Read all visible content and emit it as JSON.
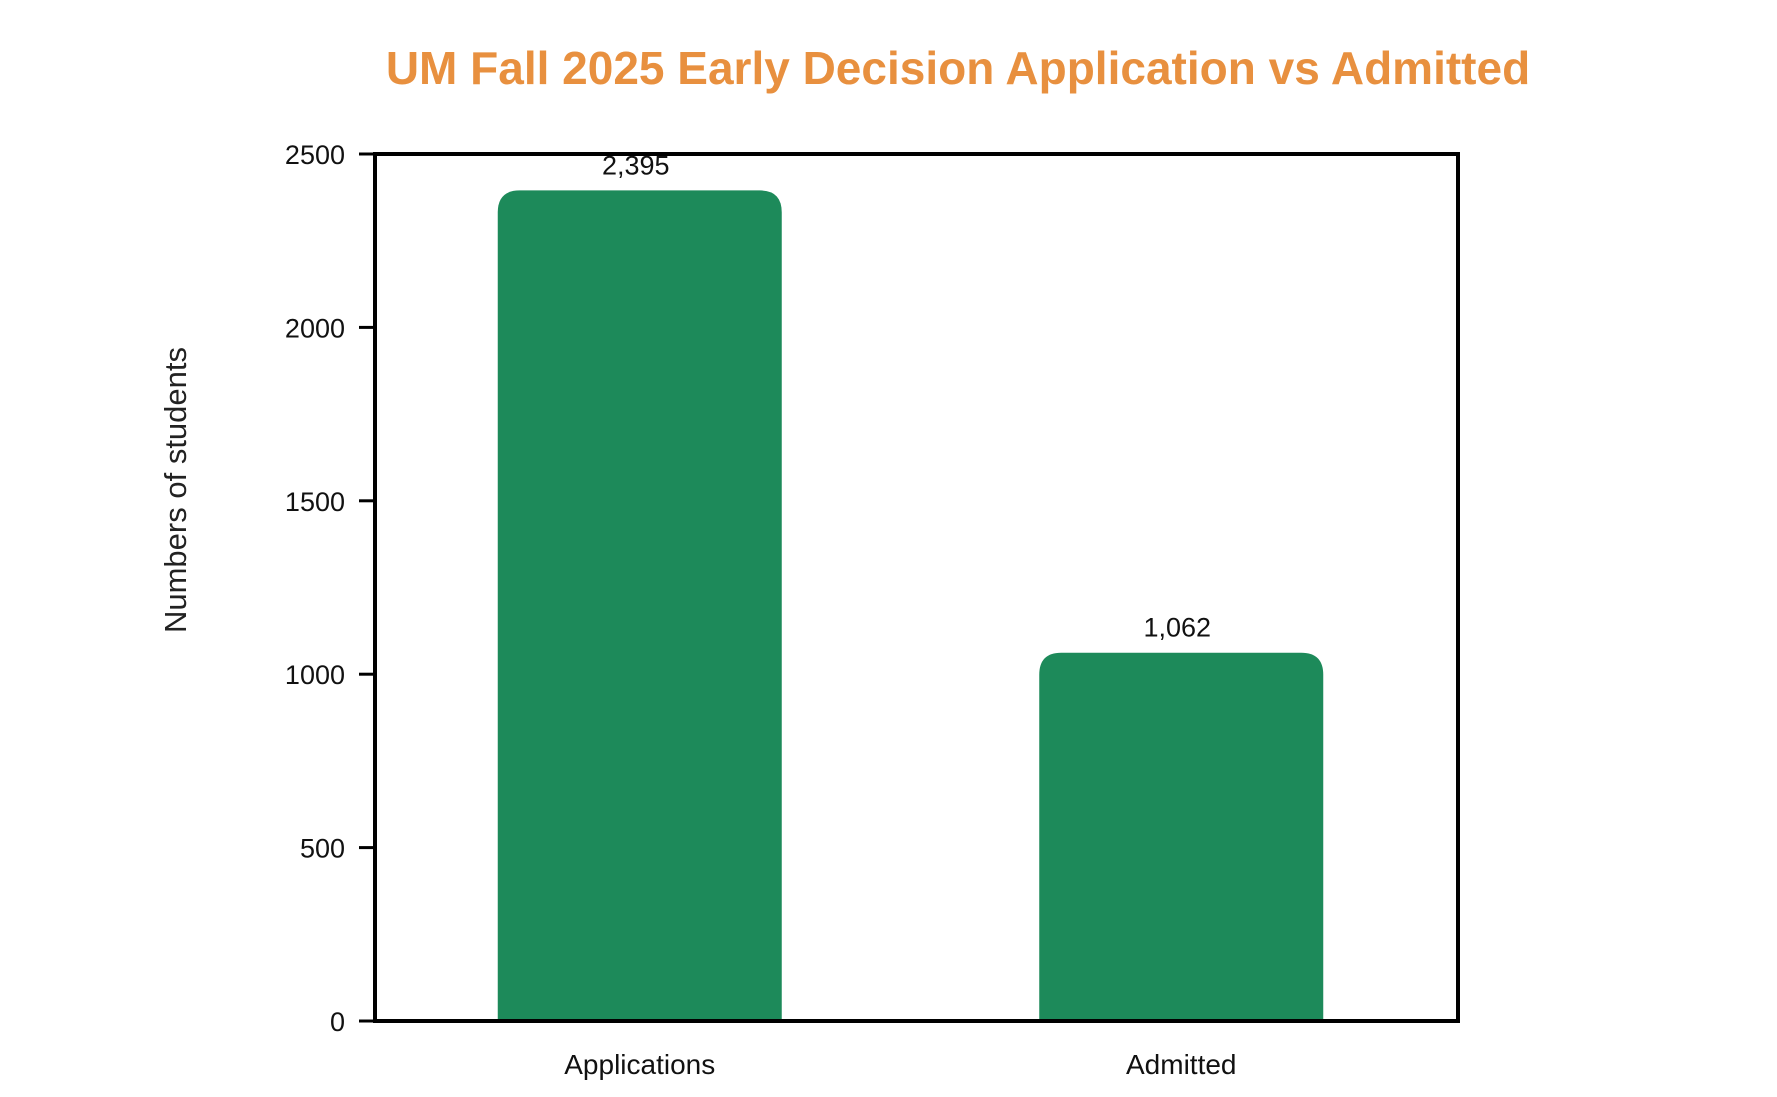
{
  "chart_data": {
    "type": "bar",
    "title": "UM Fall 2025 Early Decision Application vs Admitted",
    "xlabel": "",
    "ylabel": "Numbers of students",
    "categories": [
      "Applications",
      "Admitted"
    ],
    "values": [
      2395,
      1062
    ],
    "data_labels": [
      "2,395",
      "1,062"
    ],
    "ylim": [
      0,
      2500
    ],
    "yticks": [
      0,
      500,
      1000,
      1500,
      2000,
      2500
    ],
    "ytick_labels": [
      "0",
      "500",
      "1000",
      "1500",
      "2000",
      "2500"
    ],
    "grid": false,
    "legend": "none",
    "colors": {
      "title": "#E8903F",
      "bar": "#1D8A5A",
      "axis": "#000000"
    }
  }
}
